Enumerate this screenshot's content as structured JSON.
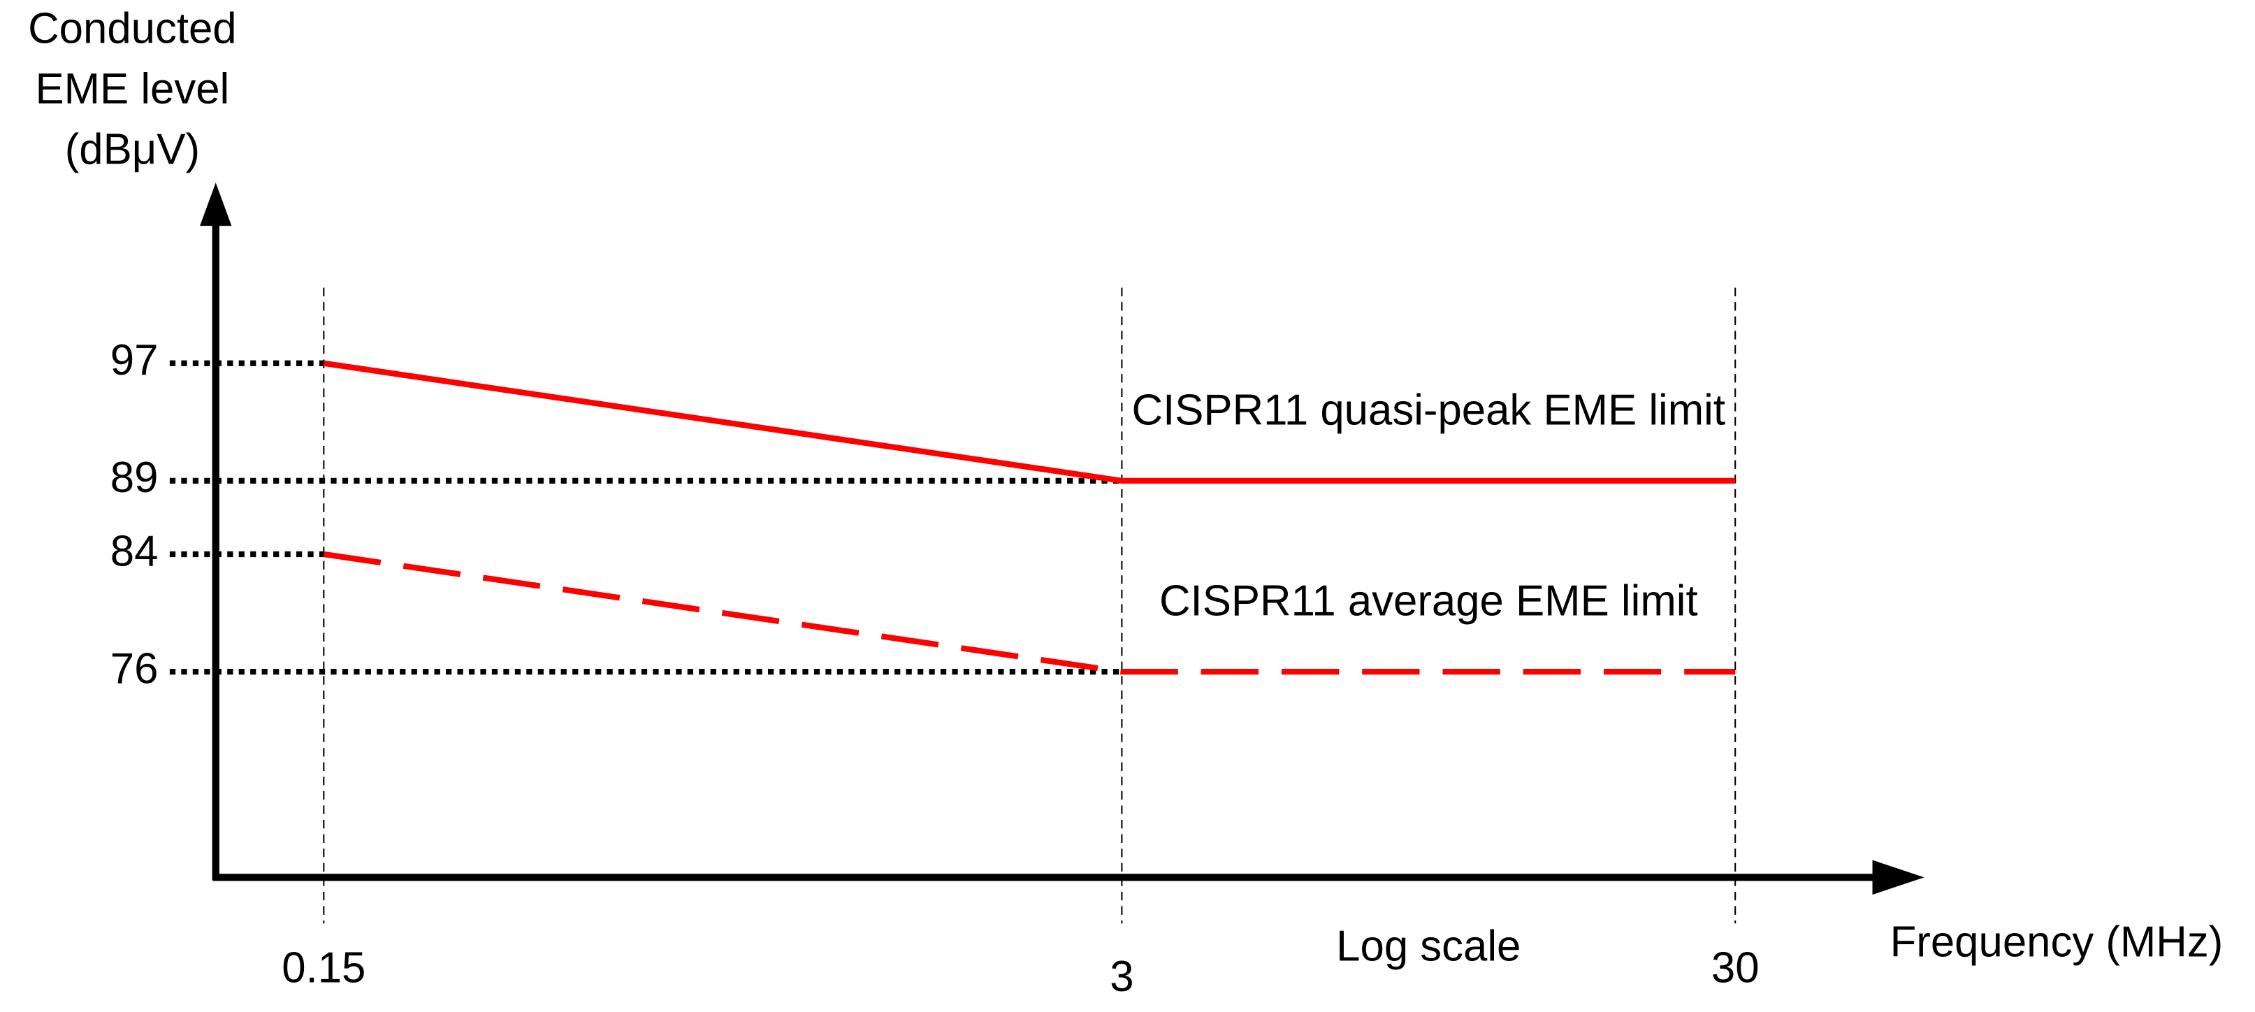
{
  "chart_data": {
    "type": "line",
    "ylabel_lines": [
      "Conducted",
      "EME level",
      "(dBμV)"
    ],
    "xlabel": "Frequency (MHz)",
    "annotation": "Log scale",
    "xscale": "log",
    "x": [
      0.15,
      3,
      30
    ],
    "xlim": [
      0.1,
      60
    ],
    "xticks": [
      0.15,
      3,
      30
    ],
    "ylim": [
      62,
      109
    ],
    "yticks": [
      97,
      89,
      84,
      76
    ],
    "series": [
      {
        "name": "CISPR11 quasi-peak EME limit",
        "color": "#ff0000",
        "dash": "solid",
        "values": [
          97,
          89,
          89
        ]
      },
      {
        "name": "CISPR11 average EME limit",
        "color": "#ff0000",
        "dash": "dashed",
        "values": [
          84,
          76,
          76
        ]
      }
    ]
  }
}
